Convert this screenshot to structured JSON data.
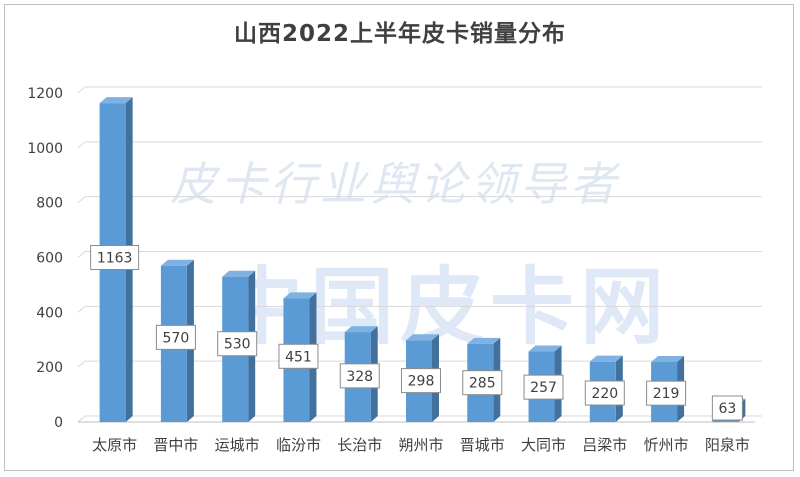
{
  "chart_data": {
    "type": "bar",
    "title": "山西2022上半年皮卡销量分布",
    "categories": [
      "太原市",
      "晋中市",
      "运城市",
      "临汾市",
      "长治市",
      "朔州市",
      "晋城市",
      "大同市",
      "吕梁市",
      "忻州市",
      "阳泉市"
    ],
    "values": [
      1163,
      570,
      530,
      451,
      328,
      298,
      285,
      257,
      220,
      219,
      63
    ],
    "ylim": [
      0,
      1200
    ],
    "yticks": [
      0,
      200,
      400,
      600,
      800,
      1000,
      1200
    ],
    "xlabel": "",
    "ylabel": "",
    "grid": true,
    "legend": "none",
    "data_labels": true,
    "style": "3d-column"
  },
  "watermark": {
    "line1": "皮卡行业舆论领导者",
    "line2": "中国皮卡网"
  },
  "colors": {
    "bar_front": "#5b9bd5",
    "bar_side": "#41719c",
    "bar_top": "#7fb2e3",
    "grid": "#d9d9d9",
    "text": "#404040"
  }
}
